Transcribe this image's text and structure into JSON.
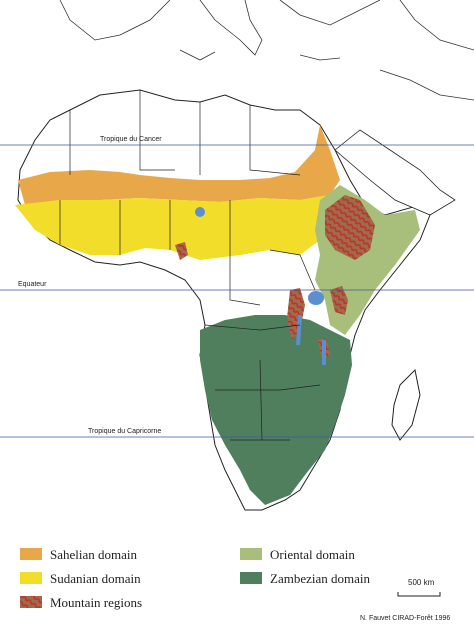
{
  "map": {
    "lines": {
      "cancer_label": "Tropique du Cancer",
      "equator_label": "Equateur",
      "capricorn_label": "Tropique du Capricorne"
    },
    "scale_label": "500 km",
    "credit": "N. Fauvet  CIRAD-Forêt  1996",
    "legend": [
      {
        "label": "Sahelian domain",
        "color": "#e8a84a"
      },
      {
        "label": "Sudanian domain",
        "color": "#f2de2a"
      },
      {
        "label": "Mountain regions",
        "color": "#b4382c"
      },
      {
        "label": "Oriental domain",
        "color": "#a7bf7a"
      },
      {
        "label": "Zambezian domain",
        "color": "#4f7f5d"
      }
    ],
    "colors": {
      "land": "#ffffff",
      "border": "#222222",
      "line": "#3a5aa0",
      "water": "#5b8fd0"
    }
  }
}
